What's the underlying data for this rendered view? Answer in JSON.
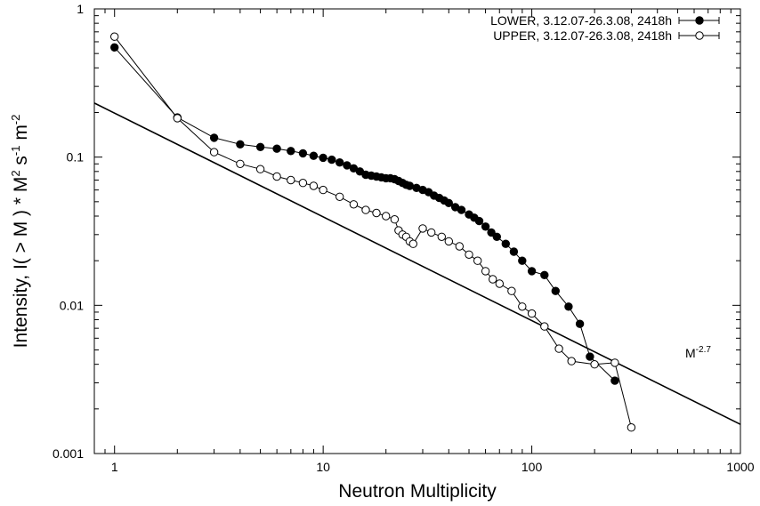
{
  "chart_data": {
    "type": "scatter",
    "xlabel": "Neutron Multiplicity",
    "ylabel_parts": {
      "prefix": "Intensity,   I( > M ) * M",
      "sup1": "2",
      "mid1": " s",
      "sup2": "-1",
      "mid2": "  m",
      "sup3": "-2"
    },
    "x_scale": "log",
    "y_scale": "log",
    "xlim": [
      0.8,
      1000
    ],
    "ylim": [
      0.001,
      1
    ],
    "x_ticks": [
      {
        "value": 1,
        "label": "1"
      },
      {
        "value": 10,
        "label": "10"
      },
      {
        "value": 100,
        "label": "100"
      },
      {
        "value": 1000,
        "label": "1000"
      }
    ],
    "y_ticks": [
      {
        "value": 0.001,
        "label": "0.001"
      },
      {
        "value": 0.01,
        "label": "0.01"
      },
      {
        "value": 0.1,
        "label": "0.1"
      },
      {
        "value": 1,
        "label": "1"
      }
    ],
    "grid": false,
    "legend_position": "top-right",
    "series": [
      {
        "name": "LOWER, 3.12.07-26.3.08, 2418h",
        "marker": "filled-circle",
        "color": "#000000",
        "points": [
          [
            1,
            0.55
          ],
          [
            2,
            0.185
          ],
          [
            3,
            0.135
          ],
          [
            4,
            0.122
          ],
          [
            5,
            0.117
          ],
          [
            6,
            0.114
          ],
          [
            7,
            0.11
          ],
          [
            8,
            0.106
          ],
          [
            9,
            0.102
          ],
          [
            10,
            0.099
          ],
          [
            11,
            0.096
          ],
          [
            12,
            0.092
          ],
          [
            13,
            0.088
          ],
          [
            14,
            0.084
          ],
          [
            15,
            0.08
          ],
          [
            16,
            0.076
          ],
          [
            17,
            0.075
          ],
          [
            18,
            0.074
          ],
          [
            19,
            0.073
          ],
          [
            20,
            0.072
          ],
          [
            21,
            0.072
          ],
          [
            22,
            0.071
          ],
          [
            23,
            0.069
          ],
          [
            24,
            0.067
          ],
          [
            25,
            0.065
          ],
          [
            26,
            0.064
          ],
          [
            28,
            0.062
          ],
          [
            30,
            0.06
          ],
          [
            32,
            0.058
          ],
          [
            34,
            0.055
          ],
          [
            36,
            0.053
          ],
          [
            38,
            0.051
          ],
          [
            40,
            0.049
          ],
          [
            43,
            0.046
          ],
          [
            46,
            0.044
          ],
          [
            50,
            0.041
          ],
          [
            53,
            0.039
          ],
          [
            56,
            0.037
          ],
          [
            60,
            0.034
          ],
          [
            64,
            0.031
          ],
          [
            68,
            0.029
          ],
          [
            75,
            0.026
          ],
          [
            82,
            0.023
          ],
          [
            90,
            0.02
          ],
          [
            100,
            0.017
          ],
          [
            115,
            0.016
          ],
          [
            130,
            0.0125
          ],
          [
            150,
            0.0098
          ],
          [
            170,
            0.0075
          ],
          [
            190,
            0.0045
          ],
          [
            250,
            0.0031
          ]
        ]
      },
      {
        "name": "UPPER, 3.12.07-26.3.08, 2418h",
        "marker": "open-circle",
        "color": "#000000",
        "points": [
          [
            1,
            0.65
          ],
          [
            2,
            0.183
          ],
          [
            3,
            0.108
          ],
          [
            4,
            0.09
          ],
          [
            5,
            0.083
          ],
          [
            6,
            0.074
          ],
          [
            7,
            0.07
          ],
          [
            8,
            0.067
          ],
          [
            9,
            0.064
          ],
          [
            10,
            0.06
          ],
          [
            12,
            0.054
          ],
          [
            14,
            0.048
          ],
          [
            16,
            0.044
          ],
          [
            18,
            0.042
          ],
          [
            20,
            0.04
          ],
          [
            22,
            0.038
          ],
          [
            23,
            0.032
          ],
          [
            24,
            0.03
          ],
          [
            25,
            0.029
          ],
          [
            26,
            0.027
          ],
          [
            27,
            0.026
          ],
          [
            30,
            0.033
          ],
          [
            33,
            0.031
          ],
          [
            37,
            0.029
          ],
          [
            40,
            0.027
          ],
          [
            45,
            0.025
          ],
          [
            50,
            0.022
          ],
          [
            55,
            0.02
          ],
          [
            60,
            0.017
          ],
          [
            65,
            0.015
          ],
          [
            70,
            0.014
          ],
          [
            80,
            0.0125
          ],
          [
            90,
            0.0098
          ],
          [
            100,
            0.0088
          ],
          [
            115,
            0.0072
          ],
          [
            135,
            0.0051
          ],
          [
            155,
            0.0042
          ],
          [
            200,
            0.004
          ],
          [
            250,
            0.0041
          ],
          [
            300,
            0.0015
          ]
        ]
      }
    ],
    "fit_line": {
      "label_base": "M",
      "label_exp": "-2.7",
      "amplitude": 0.198,
      "exponent": -0.7
    }
  }
}
